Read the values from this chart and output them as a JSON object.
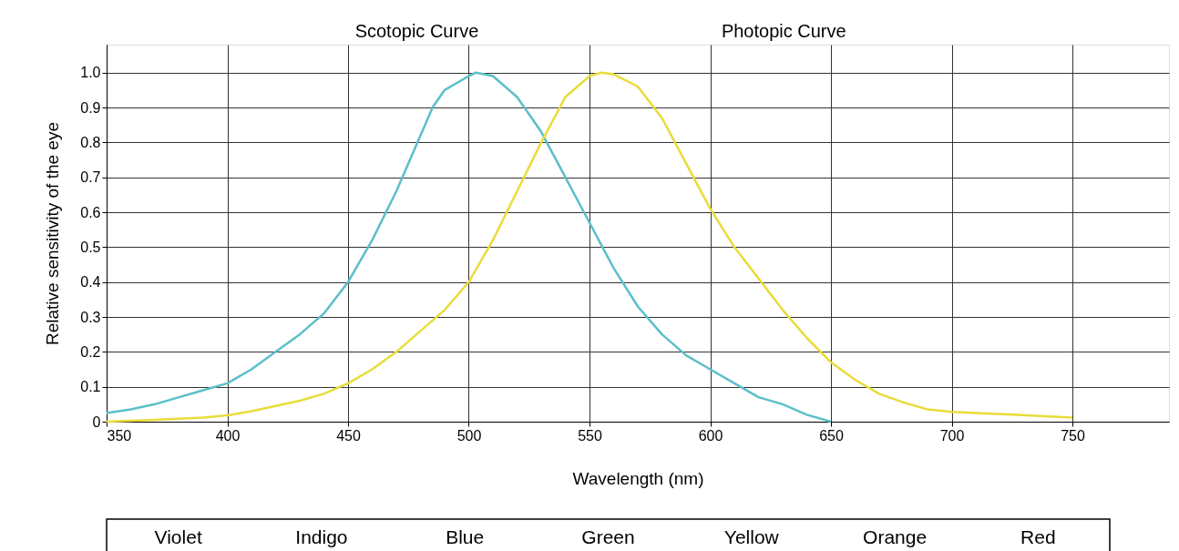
{
  "chart_data": {
    "type": "line",
    "xlabel": "Wavelength (nm)",
    "ylabel": "Relative sensitivity of the eye",
    "xlim": [
      350,
      790
    ],
    "ylim": [
      0,
      1.08
    ],
    "xticks": [
      350,
      400,
      450,
      500,
      550,
      600,
      650,
      700,
      750
    ],
    "yticks": [
      {
        "value": 0,
        "label": "0"
      },
      0.1,
      0.2,
      0.3,
      0.4,
      0.5,
      0.6,
      0.7,
      0.8,
      0.9,
      {
        "value": 1,
        "label": "1.0"
      }
    ],
    "grid": true,
    "marker": "none",
    "line_style": "solid",
    "series": [
      {
        "color": "#5bbfc9",
        "x": [
          350,
          360,
          370,
          380,
          390,
          400,
          410,
          420,
          430,
          440,
          450,
          460,
          470,
          480,
          485,
          490,
          500,
          503,
          510,
          520,
          530,
          540,
          550,
          560,
          570,
          580,
          590,
          600,
          610,
          620,
          630,
          640,
          650
        ],
        "values": [
          0.025,
          0.035,
          0.05,
          0.07,
          0.09,
          0.11,
          0.15,
          0.2,
          0.25,
          0.31,
          0.4,
          0.52,
          0.66,
          0.82,
          0.9,
          0.95,
          0.99,
          1.0,
          0.99,
          0.93,
          0.83,
          0.7,
          0.57,
          0.44,
          0.33,
          0.25,
          0.19,
          0.15,
          0.11,
          0.07,
          0.05,
          0.02,
          0.0
        ]
      },
      {
        "color": "#e8dc3a",
        "x": [
          350,
          370,
          390,
          400,
          410,
          420,
          430,
          440,
          450,
          460,
          470,
          480,
          490,
          500,
          510,
          520,
          530,
          540,
          550,
          555,
          560,
          570,
          580,
          590,
          600,
          610,
          620,
          630,
          640,
          650,
          660,
          670,
          680,
          690,
          700,
          725,
          750
        ],
        "values": [
          0.0,
          0.005,
          0.012,
          0.018,
          0.03,
          0.045,
          0.06,
          0.08,
          0.11,
          0.15,
          0.2,
          0.26,
          0.32,
          0.4,
          0.52,
          0.66,
          0.8,
          0.93,
          0.99,
          1.0,
          0.995,
          0.96,
          0.87,
          0.74,
          0.61,
          0.5,
          0.41,
          0.32,
          0.24,
          0.17,
          0.12,
          0.08,
          0.055,
          0.035,
          0.028,
          0.02,
          0.012
        ]
      }
    ],
    "annotations": [
      "Scotopic Curve",
      "Photopic Curve",
      "Violet",
      "Indigo",
      "Blue",
      "Green",
      "Yellow",
      "Orange",
      "Red"
    ]
  }
}
